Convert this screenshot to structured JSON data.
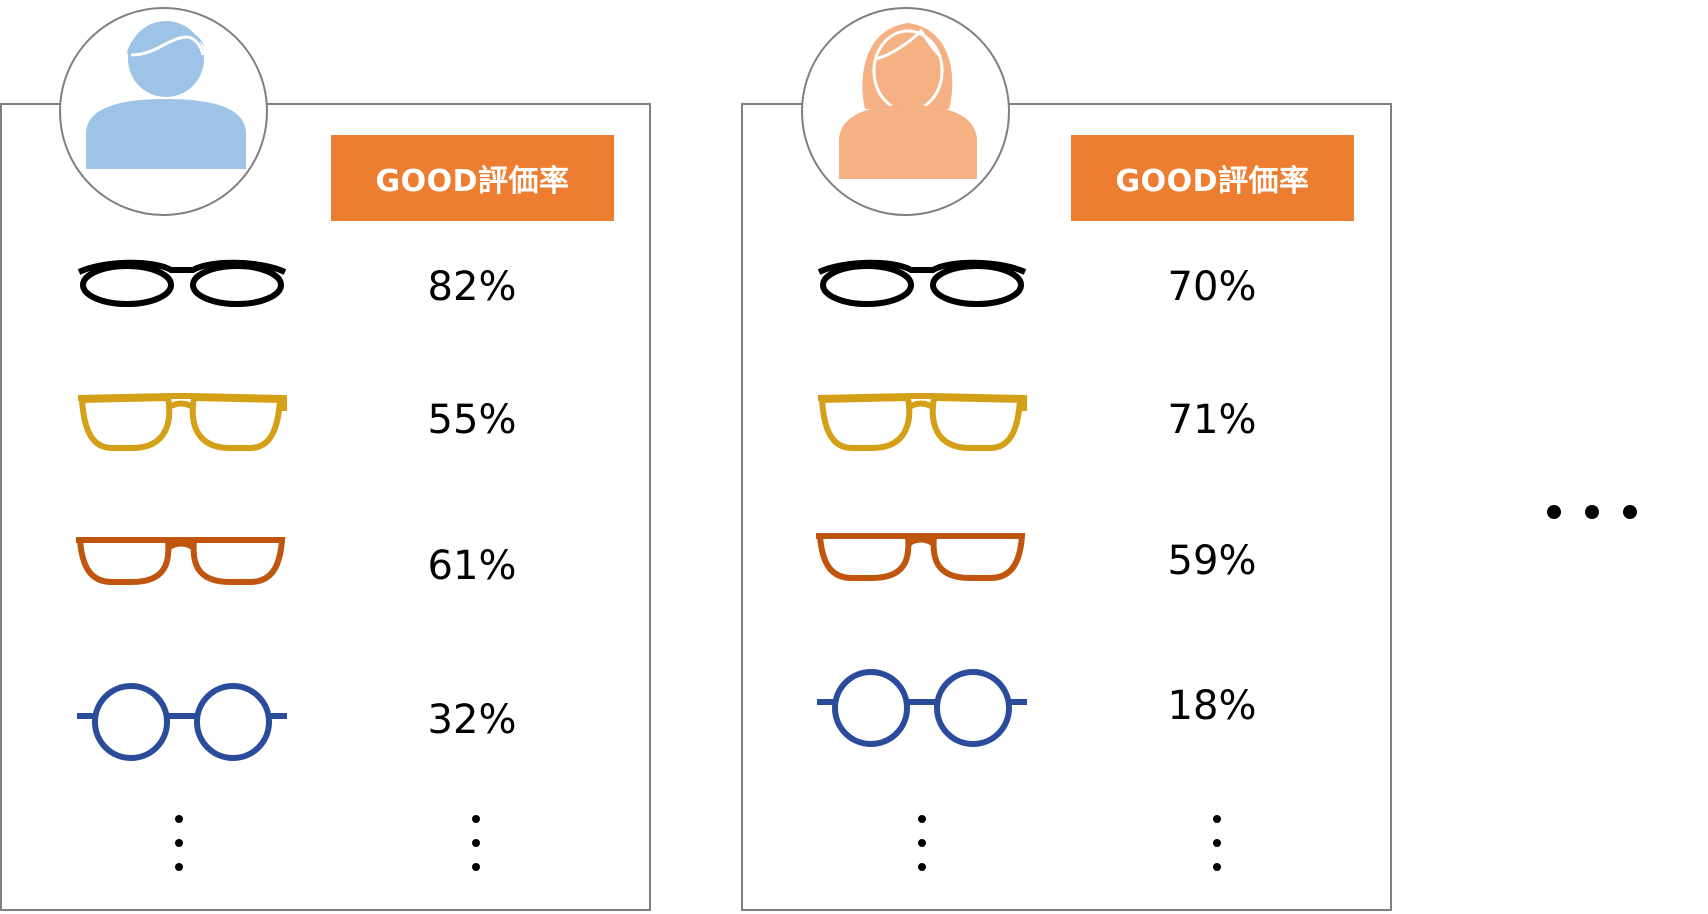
{
  "colors": {
    "header_bg": "#ED7D31",
    "male_avatar": "#9DC3E6",
    "female_avatar": "#F4B183",
    "panel_border": "#808080"
  },
  "panels": [
    {
      "avatar": "male-user-icon",
      "header": "GOOD評価率",
      "items": [
        {
          "glasses": "black-oval-glasses-icon",
          "color": "#000000",
          "rate": "82%"
        },
        {
          "glasses": "gold-rectangle-glasses-icon",
          "color": "#D4A017",
          "rate": "55%"
        },
        {
          "glasses": "brown-rectangle-glasses-icon",
          "color": "#C0550F",
          "rate": "61%"
        },
        {
          "glasses": "blue-round-glasses-icon",
          "color": "#2B4C9B",
          "rate": "32%"
        }
      ]
    },
    {
      "avatar": "female-user-icon",
      "header": "GOOD評価率",
      "items": [
        {
          "glasses": "black-oval-glasses-icon",
          "color": "#000000",
          "rate": "70%"
        },
        {
          "glasses": "gold-rectangle-glasses-icon",
          "color": "#D4A017",
          "rate": "71%"
        },
        {
          "glasses": "brown-rectangle-glasses-icon",
          "color": "#C0550F",
          "rate": "59%"
        },
        {
          "glasses": "blue-round-glasses-icon",
          "color": "#2B4C9B",
          "rate": "18%"
        }
      ]
    }
  ]
}
